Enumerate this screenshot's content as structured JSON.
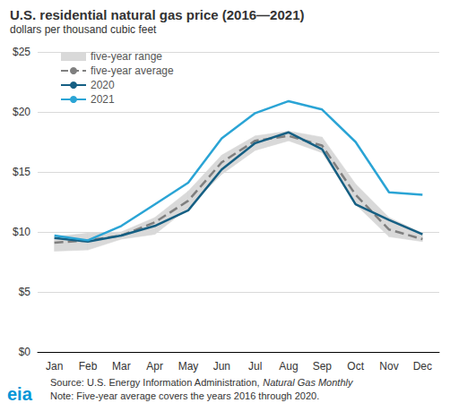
{
  "chart_data": {
    "type": "line",
    "title": "U.S. residential natural gas price (2016—2021)",
    "subtitle": "dollars per thousand cubic feet",
    "categories": [
      "Jan",
      "Feb",
      "Mar",
      "Apr",
      "May",
      "Jun",
      "Jul",
      "Aug",
      "Sep",
      "Oct",
      "Nov",
      "Dec"
    ],
    "range": {
      "name": "five-year range",
      "color": "#d9d9d9",
      "low": [
        8.4,
        8.5,
        9.4,
        9.8,
        12.0,
        14.8,
        16.8,
        17.6,
        16.6,
        12.3,
        9.6,
        9.2
      ],
      "high": [
        9.6,
        9.9,
        10.0,
        11.2,
        13.4,
        16.4,
        18.0,
        18.4,
        17.9,
        14.0,
        11.2,
        9.9
      ]
    },
    "series": [
      {
        "name": "five-year average",
        "color": "#7f7f7f",
        "line_style": "dashed",
        "values": [
          9.1,
          9.3,
          9.7,
          10.8,
          12.6,
          15.8,
          17.6,
          18.0,
          17.2,
          13.1,
          10.2,
          9.4
        ]
      },
      {
        "name": "2020",
        "color": "#155f83",
        "line_style": "solid",
        "values": [
          9.5,
          9.2,
          9.7,
          10.5,
          11.8,
          15.2,
          17.4,
          18.3,
          16.9,
          12.3,
          11.0,
          9.8
        ]
      },
      {
        "name": "2021",
        "color": "#2aa4d5",
        "line_style": "solid",
        "values": [
          9.7,
          9.3,
          10.5,
          12.3,
          14.1,
          17.8,
          19.9,
          20.9,
          20.2,
          17.5,
          13.3,
          13.1
        ]
      }
    ],
    "ylim": [
      0,
      25
    ],
    "yticks": [
      {
        "value": 0,
        "label": "$0"
      },
      {
        "value": 5,
        "label": "$5"
      },
      {
        "value": 10,
        "label": "$10"
      },
      {
        "value": 15,
        "label": "$15"
      },
      {
        "value": 20,
        "label": "$20"
      },
      {
        "value": 25,
        "label": "$25"
      }
    ],
    "grid": true,
    "legend": "upper left",
    "source": [
      "Source: U.S. Energy Information Administration, ",
      "Natural Gas Monthly"
    ],
    "note": "Note: Five-year average covers the years 2016 through 2020.",
    "logo": "eia"
  }
}
